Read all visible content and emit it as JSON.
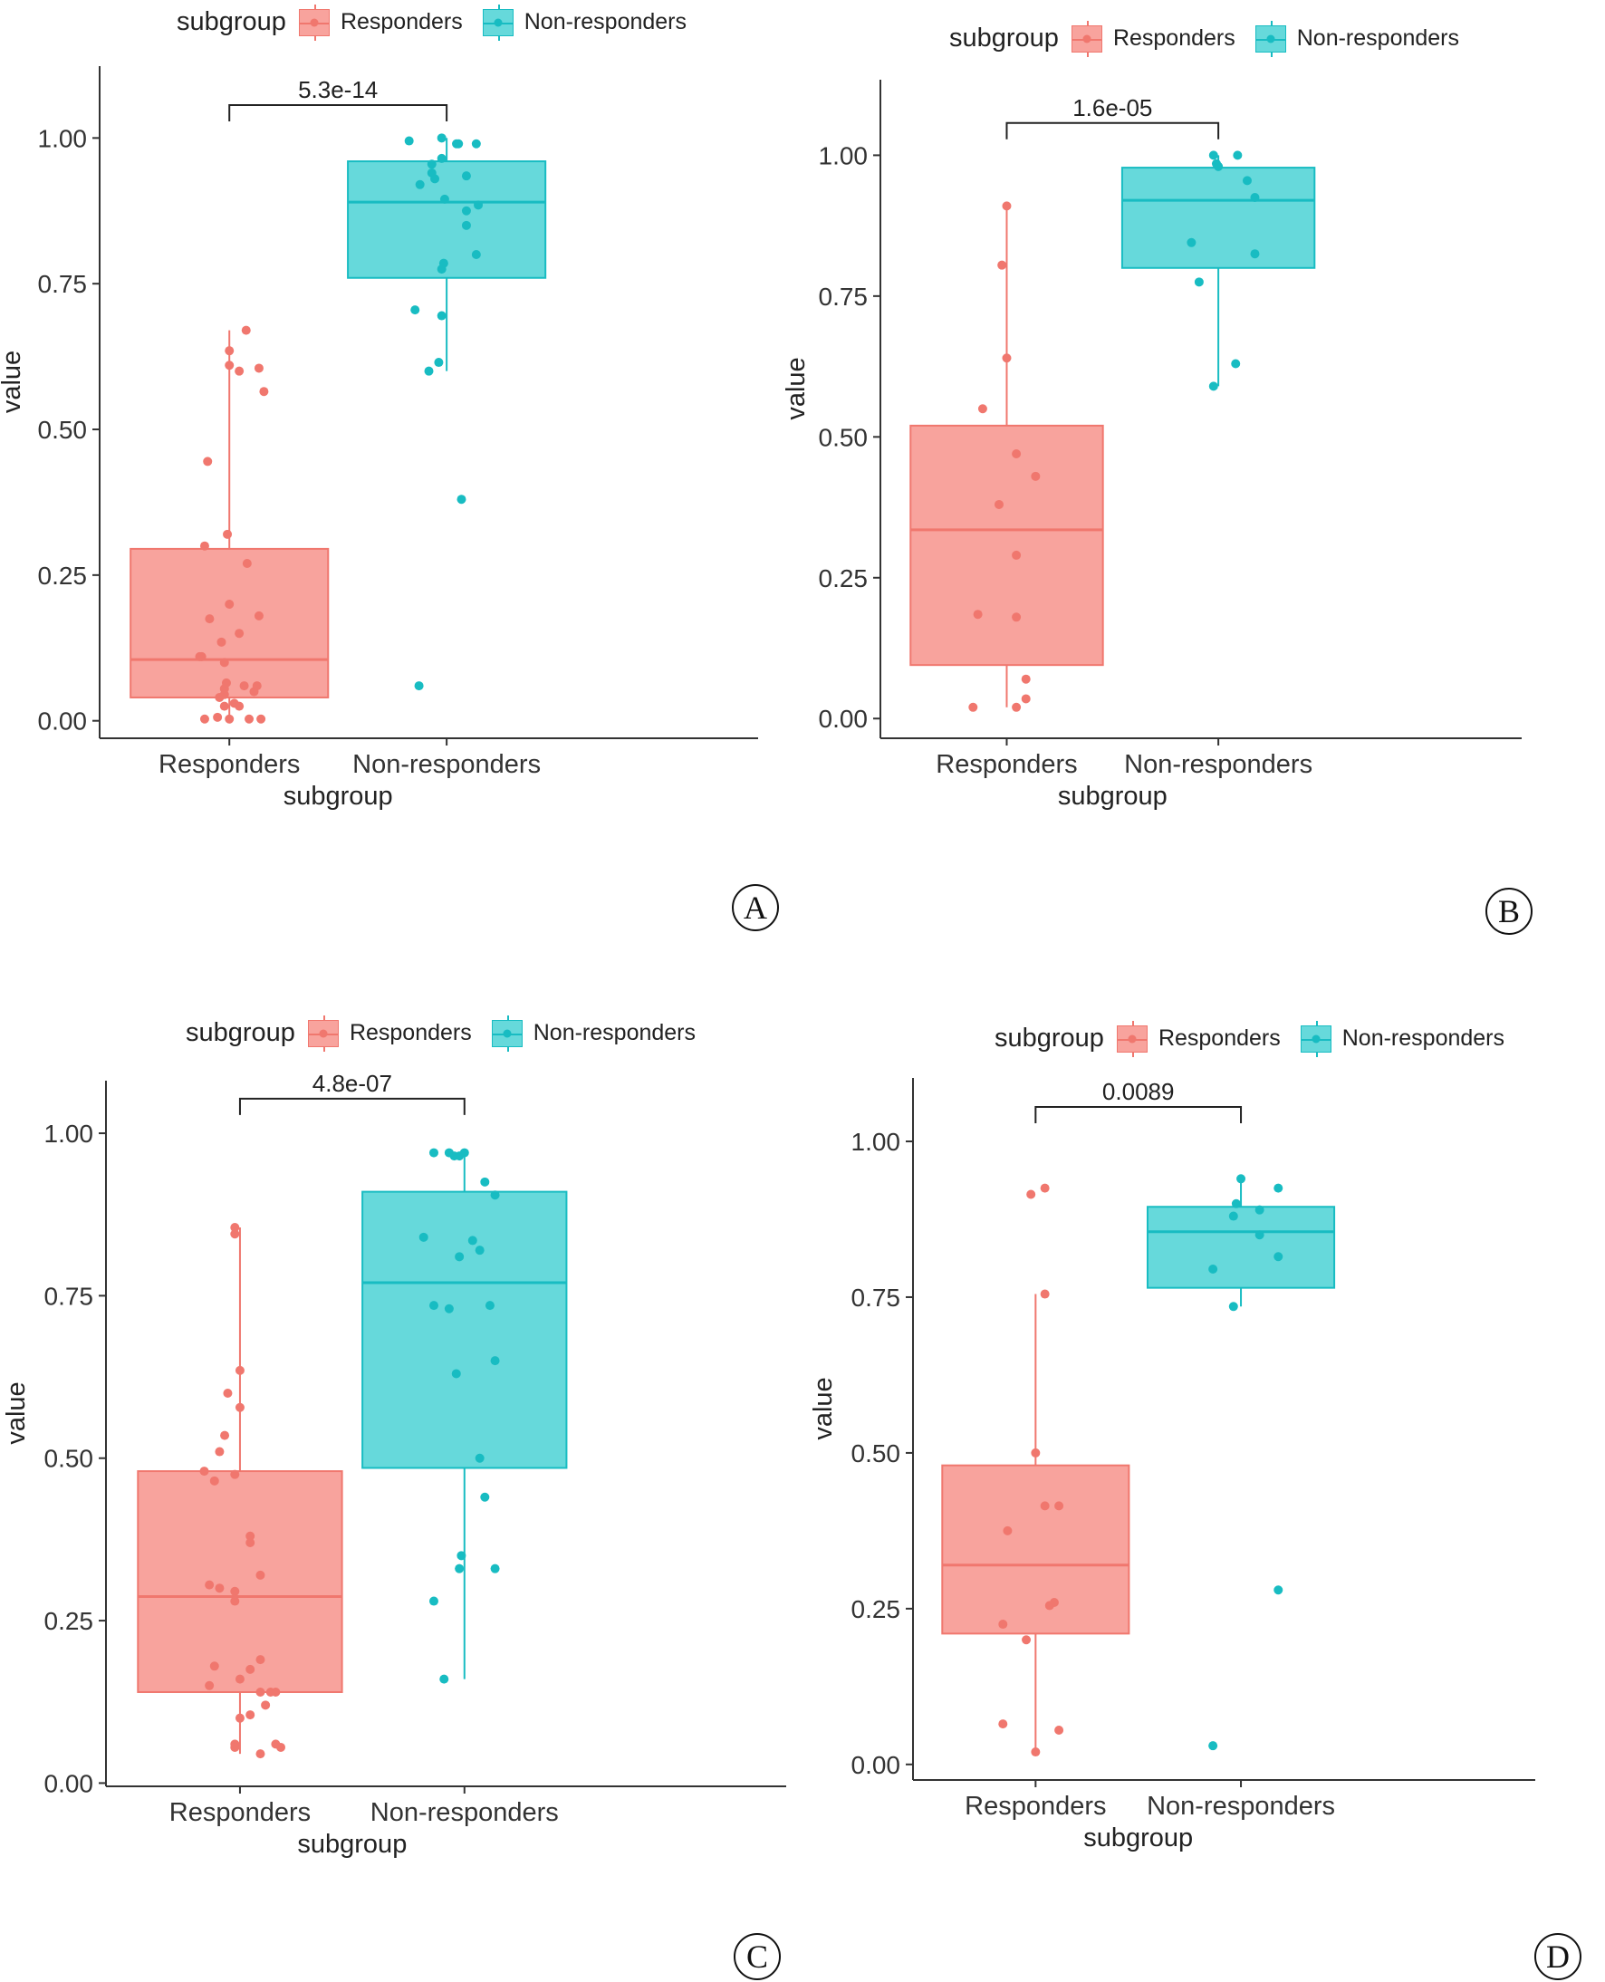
{
  "colors": {
    "responders_fill": "#F8A39D",
    "responders_line": "#F0776E",
    "nonresponders_fill": "#66D9DB",
    "nonresponders_line": "#18BCC2",
    "axis": "#333333",
    "text": "#222222"
  },
  "chart_data": [
    {
      "panel_label": "A",
      "type": "box",
      "legend": {
        "title": "subgroup",
        "entries": [
          "Responders",
          "Non-responders"
        ]
      },
      "categories": [
        "Responders",
        "Non-responders"
      ],
      "xlabel": "subgroup",
      "ylabel": "value",
      "ylim": [
        -0.03,
        1.1
      ],
      "yticks": [
        0,
        0.25,
        0.5,
        0.75,
        1
      ],
      "ytick_labels": [
        "0.00",
        "0.25",
        "0.50",
        "0.75",
        "1.00"
      ],
      "pvalue": "5.3e-14",
      "series": [
        {
          "name": "Responders",
          "box": {
            "q1": 0.04,
            "median": 0.105,
            "q3": 0.295,
            "whisker_low": 0.0,
            "whisker_high": 0.67
          },
          "points": [
            [
              -0.25,
              0.003
            ],
            [
              -0.12,
              0.006
            ],
            [
              0.0,
              0.003
            ],
            [
              0.2,
              0.003
            ],
            [
              0.32,
              0.003
            ],
            [
              -0.05,
              0.025
            ],
            [
              0.05,
              0.03
            ],
            [
              0.1,
              0.025
            ],
            [
              0.25,
              0.05
            ],
            [
              0.28,
              0.06
            ],
            [
              0.15,
              0.06
            ],
            [
              -0.1,
              0.04
            ],
            [
              -0.05,
              0.045
            ],
            [
              -0.05,
              0.055
            ],
            [
              -0.03,
              0.065
            ],
            [
              -0.05,
              0.1
            ],
            [
              -0.28,
              0.11
            ],
            [
              -0.3,
              0.11
            ],
            [
              -0.2,
              0.175
            ],
            [
              0.0,
              0.2
            ],
            [
              0.1,
              0.15
            ],
            [
              0.3,
              0.18
            ],
            [
              -0.08,
              0.135
            ],
            [
              0.18,
              0.27
            ],
            [
              -0.25,
              0.3
            ],
            [
              -0.02,
              0.32
            ],
            [
              -0.22,
              0.445
            ],
            [
              0.0,
              0.61
            ],
            [
              0.3,
              0.605
            ],
            [
              0.1,
              0.6
            ],
            [
              0.35,
              0.565
            ],
            [
              0.0,
              0.635
            ],
            [
              0.17,
              0.67
            ]
          ]
        },
        {
          "name": "Non-responders",
          "box": {
            "q1": 0.76,
            "median": 0.89,
            "q3": 0.96,
            "whisker_low": 0.6,
            "whisker_high": 1.0
          },
          "points": [
            [
              -0.38,
              0.995
            ],
            [
              -0.05,
              1.0
            ],
            [
              0.1,
              0.99
            ],
            [
              0.12,
              0.99
            ],
            [
              0.3,
              0.99
            ],
            [
              -0.15,
              0.955
            ],
            [
              -0.05,
              0.965
            ],
            [
              -0.15,
              0.94
            ],
            [
              -0.12,
              0.93
            ],
            [
              0.2,
              0.935
            ],
            [
              -0.27,
              0.92
            ],
            [
              -0.02,
              0.895
            ],
            [
              0.32,
              0.885
            ],
            [
              0.2,
              0.875
            ],
            [
              0.2,
              0.85
            ],
            [
              0.3,
              0.8
            ],
            [
              -0.03,
              0.785
            ],
            [
              -0.05,
              0.775
            ],
            [
              -0.32,
              0.705
            ],
            [
              -0.05,
              0.695
            ],
            [
              -0.08,
              0.615
            ],
            [
              -0.18,
              0.6
            ],
            [
              0.15,
              0.38
            ],
            [
              -0.28,
              0.06
            ]
          ]
        }
      ]
    },
    {
      "panel_label": "B",
      "type": "box",
      "legend": {
        "title": "subgroup",
        "entries": [
          "Responders",
          "Non-responders"
        ]
      },
      "categories": [
        "Responders",
        "Non-responders"
      ],
      "xlabel": "subgroup",
      "ylabel": "value",
      "ylim": [
        -0.035,
        1.11
      ],
      "yticks": [
        0,
        0.25,
        0.5,
        0.75,
        1
      ],
      "ytick_labels": [
        "0.00",
        "0.25",
        "0.50",
        "0.75",
        "1.00"
      ],
      "pvalue": "1.6e-05",
      "series": [
        {
          "name": "Responders",
          "box": {
            "q1": 0.095,
            "median": 0.335,
            "q3": 0.52,
            "whisker_low": 0.02,
            "whisker_high": 0.91
          },
          "points": [
            [
              0.0,
              0.91
            ],
            [
              -0.05,
              0.805
            ],
            [
              0.0,
              0.64
            ],
            [
              -0.25,
              0.55
            ],
            [
              0.1,
              0.47
            ],
            [
              0.3,
              0.43
            ],
            [
              -0.08,
              0.38
            ],
            [
              0.1,
              0.29
            ],
            [
              -0.3,
              0.185
            ],
            [
              0.1,
              0.18
            ],
            [
              0.2,
              0.07
            ],
            [
              0.2,
              0.035
            ],
            [
              0.1,
              0.02
            ],
            [
              -0.35,
              0.02
            ]
          ]
        },
        {
          "name": "Non-responders",
          "box": {
            "q1": 0.8,
            "median": 0.92,
            "q3": 0.978,
            "whisker_low": 0.59,
            "whisker_high": 1.0
          },
          "points": [
            [
              -0.05,
              1.0
            ],
            [
              0.2,
              1.0
            ],
            [
              -0.02,
              0.985
            ],
            [
              0.0,
              0.98
            ],
            [
              0.3,
              0.955
            ],
            [
              0.38,
              0.925
            ],
            [
              -0.28,
              0.845
            ],
            [
              0.38,
              0.825
            ],
            [
              -0.2,
              0.775
            ],
            [
              0.18,
              0.63
            ],
            [
              -0.05,
              0.59
            ]
          ]
        }
      ]
    },
    {
      "panel_label": "C",
      "type": "box",
      "legend": {
        "title": "subgroup",
        "entries": [
          "Responders",
          "Non-responders"
        ]
      },
      "categories": [
        "Responders",
        "Non-responders"
      ],
      "xlabel": "subgroup",
      "ylabel": "value",
      "ylim": [
        -0.005,
        1.06
      ],
      "yticks": [
        0,
        0.25,
        0.5,
        0.75,
        1
      ],
      "ytick_labels": [
        "0.00",
        "0.25",
        "0.50",
        "0.75",
        "1.00"
      ],
      "pvalue": "4.8e-07",
      "series": [
        {
          "name": "Responders",
          "box": {
            "q1": 0.14,
            "median": 0.287,
            "q3": 0.48,
            "whisker_low": 0.045,
            "whisker_high": 0.855
          },
          "points": [
            [
              -0.05,
              0.855
            ],
            [
              -0.05,
              0.845
            ],
            [
              0.0,
              0.635
            ],
            [
              -0.12,
              0.6
            ],
            [
              0.0,
              0.578
            ],
            [
              -0.15,
              0.535
            ],
            [
              -0.2,
              0.51
            ],
            [
              -0.35,
              0.48
            ],
            [
              -0.05,
              0.475
            ],
            [
              -0.25,
              0.465
            ],
            [
              0.1,
              0.38
            ],
            [
              0.1,
              0.37
            ],
            [
              -0.3,
              0.305
            ],
            [
              -0.2,
              0.3
            ],
            [
              -0.05,
              0.28
            ],
            [
              -0.05,
              0.295
            ],
            [
              0.2,
              0.32
            ],
            [
              0.2,
              0.19
            ],
            [
              -0.25,
              0.18
            ],
            [
              0.1,
              0.175
            ],
            [
              0.0,
              0.16
            ],
            [
              -0.3,
              0.15
            ],
            [
              0.2,
              0.14
            ],
            [
              0.3,
              0.14
            ],
            [
              0.35,
              0.14
            ],
            [
              0.25,
              0.12
            ],
            [
              0.0,
              0.1
            ],
            [
              0.1,
              0.105
            ],
            [
              -0.05,
              0.06
            ],
            [
              -0.05,
              0.055
            ],
            [
              0.35,
              0.06
            ],
            [
              0.4,
              0.055
            ],
            [
              0.2,
              0.045
            ]
          ]
        },
        {
          "name": "Non-responders",
          "box": {
            "q1": 0.485,
            "median": 0.77,
            "q3": 0.91,
            "whisker_low": 0.16,
            "whisker_high": 0.97
          },
          "points": [
            [
              -0.3,
              0.97
            ],
            [
              -0.15,
              0.97
            ],
            [
              -0.1,
              0.965
            ],
            [
              -0.05,
              0.965
            ],
            [
              0.0,
              0.97
            ],
            [
              0.2,
              0.925
            ],
            [
              0.3,
              0.905
            ],
            [
              -0.4,
              0.84
            ],
            [
              0.08,
              0.835
            ],
            [
              0.15,
              0.82
            ],
            [
              -0.05,
              0.81
            ],
            [
              -0.3,
              0.735
            ],
            [
              -0.15,
              0.73
            ],
            [
              0.25,
              0.735
            ],
            [
              0.3,
              0.65
            ],
            [
              -0.08,
              0.63
            ],
            [
              0.15,
              0.5
            ],
            [
              0.2,
              0.44
            ],
            [
              -0.03,
              0.35
            ],
            [
              -0.05,
              0.33
            ],
            [
              0.3,
              0.33
            ],
            [
              -0.3,
              0.28
            ],
            [
              -0.2,
              0.16
            ]
          ]
        }
      ]
    },
    {
      "panel_label": "D",
      "type": "box",
      "legend": {
        "title": "subgroup",
        "entries": [
          "Responders",
          "Non-responders"
        ]
      },
      "categories": [
        "Responders",
        "Non-responders"
      ],
      "xlabel": "subgroup",
      "ylabel": "value",
      "ylim": [
        -0.025,
        1.08
      ],
      "yticks": [
        0,
        0.25,
        0.5,
        0.75,
        1
      ],
      "ytick_labels": [
        "0.00",
        "0.25",
        "0.50",
        "0.75",
        "1.00"
      ],
      "pvalue": "0.0089",
      "series": [
        {
          "name": "Responders",
          "box": {
            "q1": 0.21,
            "median": 0.32,
            "q3": 0.48,
            "whisker_low": 0.02,
            "whisker_high": 0.755
          },
          "points": [
            [
              -0.05,
              0.915
            ],
            [
              0.1,
              0.925
            ],
            [
              0.1,
              0.755
            ],
            [
              0.0,
              0.5
            ],
            [
              0.25,
              0.415
            ],
            [
              0.1,
              0.415
            ],
            [
              -0.3,
              0.375
            ],
            [
              0.2,
              0.26
            ],
            [
              0.15,
              0.255
            ],
            [
              -0.35,
              0.225
            ],
            [
              -0.1,
              0.2
            ],
            [
              -0.35,
              0.065
            ],
            [
              0.25,
              0.055
            ],
            [
              0.0,
              0.02
            ]
          ]
        },
        {
          "name": "Non-responders",
          "box": {
            "q1": 0.765,
            "median": 0.855,
            "q3": 0.895,
            "whisker_low": 0.735,
            "whisker_high": 0.94
          },
          "points": [
            [
              0.0,
              0.94
            ],
            [
              0.4,
              0.925
            ],
            [
              -0.05,
              0.9
            ],
            [
              0.2,
              0.89
            ],
            [
              -0.08,
              0.88
            ],
            [
              0.2,
              0.85
            ],
            [
              0.4,
              0.815
            ],
            [
              -0.3,
              0.795
            ],
            [
              -0.08,
              0.735
            ],
            [
              0.4,
              0.28
            ],
            [
              -0.3,
              0.03
            ]
          ]
        }
      ]
    }
  ]
}
